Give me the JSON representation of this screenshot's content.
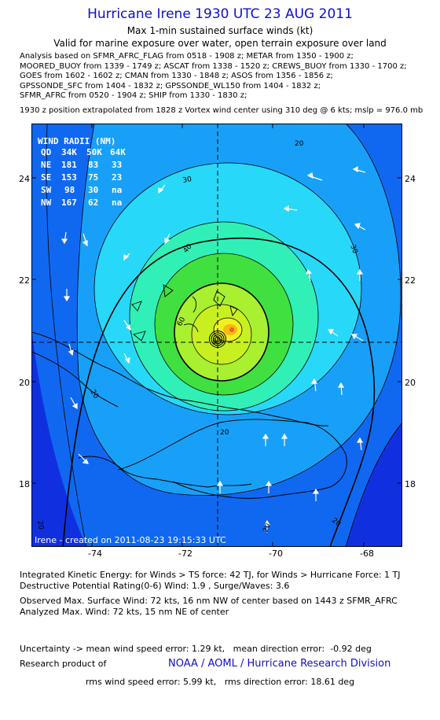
{
  "header": {
    "title": "Hurricane Irene 1930 UTC 23 AUG 2011",
    "subtitle": "Max 1-min sustained surface winds (kt)",
    "valid": "Valid for marine exposure over water, open terrain exposure over land",
    "analysis_lines": [
      "Analysis based on SFMR_AFRC_FLAG from 0518 - 1908 z; METAR from 1350 - 1900 z;",
      "MOORED_BUOY from 1339 - 1749 z; ASCAT from 1338 - 1520 z; CREWS_BUOY from 1330 - 1700 z;",
      "GOES from 1602 - 1602 z; CMAN from 1330 - 1848 z; ASOS from 1356 - 1856 z;",
      "GPSSONDE_SFC from 1404 - 1832 z; GPSSONDE_WL150 from 1404 - 1832 z;",
      "SFMR_AFRC from 0520 - 1904 z; SHIP from 1330 - 1830 z;"
    ],
    "position_line": "1930 z position extrapolated from 1828 z Vortex wind center using 310 deg @ 6 kts; mslp = 976.0 mb"
  },
  "map": {
    "lon_ticks": [
      "-74",
      "-72",
      "-70",
      "-68"
    ],
    "lat_ticks": [
      "24",
      "22",
      "20",
      "18"
    ],
    "contour_labels": [
      "20",
      "30",
      "40",
      "50",
      "60",
      "30",
      "20",
      "20",
      "20",
      "20",
      "20"
    ],
    "credit": "Irene - created on 2011-08-23 19:15:33 UTC",
    "wind_radii": {
      "title": "WIND RADII (NM)",
      "header": [
        "QD",
        "34K",
        "50K",
        "64K"
      ],
      "rows": [
        [
          "NE",
          "181",
          "83",
          "33"
        ],
        [
          "SE",
          "153",
          "75",
          "23"
        ],
        [
          "SW",
          "98",
          "30",
          "na"
        ],
        [
          "NW",
          "167",
          "62",
          "na"
        ]
      ]
    },
    "colors": {
      "c0": "#1030e0",
      "c1": "#1068f0",
      "c2": "#18a0f8",
      "c3": "#28d8f8",
      "c4": "#30f0b8",
      "c5": "#40e040",
      "c6": "#a8f030",
      "c7": "#f0f020",
      "c8": "#f8b810",
      "c9": "#f06020"
    }
  },
  "footer": {
    "lines": [
      "Integrated Kinetic Energy:  for Winds > TS force: 42 TJ,  for Winds > Hurricane Force: 1 TJ",
      "Destructive Potential Rating(0-6)   Wind: 1.9 , Surge/Waves: 3.6"
    ],
    "observed": [
      "Observed Max. Surface Wind: 72 kts, 16 nm NW of center based on 1443 z SFMR_AFRC",
      "Analyzed Max. Wind: 72 kts, 15 nm NE of center"
    ],
    "uncertainty": [
      "Uncertainty -> mean wind speed error: 1.29 kt,   mean direction error:  -0.92 deg",
      "                        rms wind speed error: 5.99 kt,   rms direction error: 18.61 deg"
    ],
    "research_label": "Research product of",
    "research_org": "NOAA / AOML / Hurricane Research Division"
  }
}
